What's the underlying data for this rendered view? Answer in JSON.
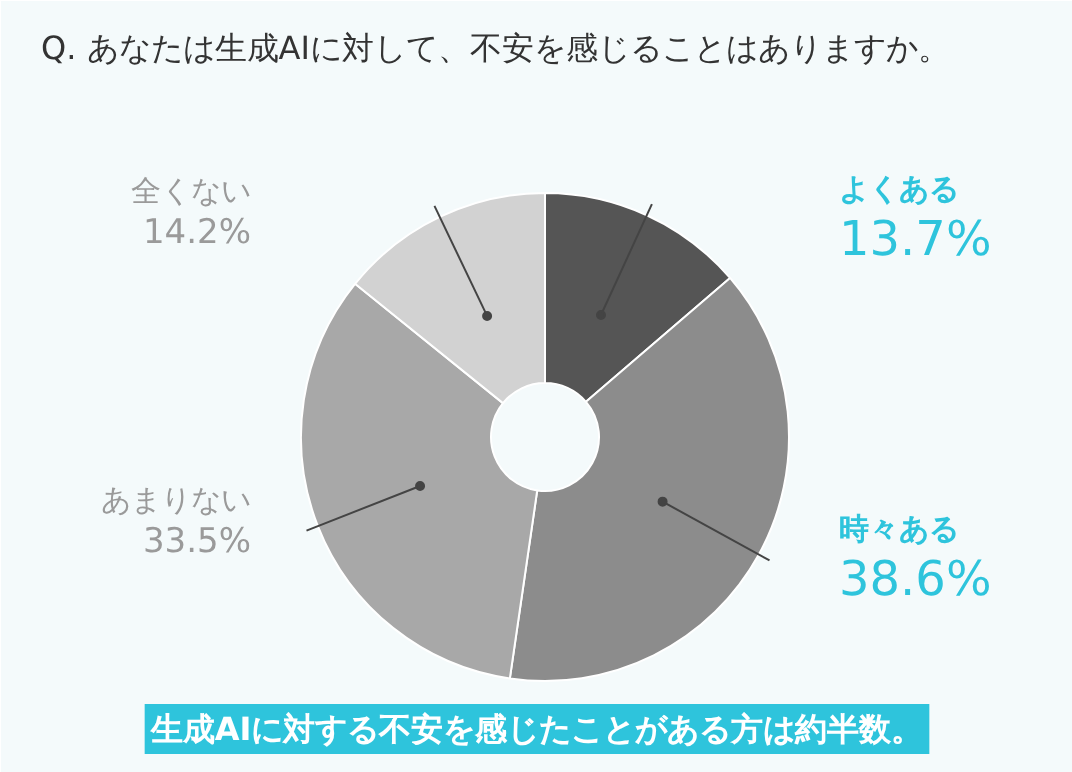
{
  "chart_data": {
    "type": "donut",
    "title": "Q. あなたは生成AIに対して、不安を感じることはありますか。",
    "categories": [
      "よくある",
      "時々ある",
      "あまりない",
      "全くない"
    ],
    "values": [
      13.7,
      38.6,
      33.5,
      14.2
    ],
    "colors": [
      "#555555",
      "#8c8c8c",
      "#a8a8a8",
      "#d2d2d2"
    ],
    "value_labels": [
      "13.7%",
      "38.6%",
      "33.5%",
      "14.2%"
    ],
    "annotations": [
      "生成AIに対する不安を感じたことがある方は約半数。"
    ]
  }
}
